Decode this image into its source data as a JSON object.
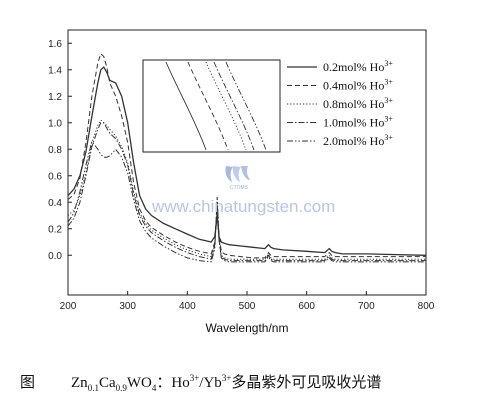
{
  "chart_data": {
    "type": "line",
    "xlabel": "Wavelength/nm",
    "ylabel": "",
    "xlim": [
      200,
      800
    ],
    "ylim": [
      -0.3,
      1.7
    ],
    "x_ticks": [
      200,
      300,
      400,
      500,
      600,
      700,
      800
    ],
    "y_ticks": [
      0.0,
      0.2,
      0.4,
      0.6,
      0.8,
      1.0,
      1.2,
      1.4,
      1.6
    ],
    "legend_placement": "top-right",
    "grid": false,
    "inset": true,
    "series": [
      {
        "name": "0.2mol% Ho",
        "name_sup": "3+",
        "style": "solid",
        "x": [
          200,
          210,
          220,
          230,
          240,
          250,
          255,
          260,
          265,
          270,
          280,
          290,
          300,
          310,
          320,
          330,
          340,
          350,
          360,
          380,
          400,
          420,
          440,
          446,
          450,
          453,
          457,
          462,
          470,
          490,
          510,
          530,
          536,
          540,
          545,
          560,
          600,
          630,
          638,
          642,
          648,
          660,
          700,
          800
        ],
        "values": [
          0.45,
          0.5,
          0.6,
          0.78,
          1.05,
          1.3,
          1.4,
          1.42,
          1.38,
          1.32,
          1.3,
          1.2,
          1.0,
          0.7,
          0.45,
          0.35,
          0.3,
          0.27,
          0.24,
          0.2,
          0.16,
          0.12,
          0.1,
          0.14,
          0.3,
          0.14,
          0.1,
          0.09,
          0.08,
          0.07,
          0.06,
          0.05,
          0.08,
          0.06,
          0.05,
          0.04,
          0.03,
          0.02,
          0.05,
          0.03,
          0.02,
          0.01,
          0.01,
          0.0
        ]
      },
      {
        "name": "0.4mol% Ho",
        "name_sup": "3+",
        "style": "dashed",
        "x": [
          200,
          210,
          220,
          230,
          240,
          250,
          255,
          260,
          265,
          270,
          280,
          290,
          300,
          310,
          320,
          330,
          340,
          350,
          360,
          380,
          400,
          420,
          440,
          446,
          450,
          453,
          457,
          462,
          470,
          490,
          510,
          530,
          536,
          540,
          545,
          560,
          600,
          630,
          638,
          642,
          648,
          660,
          700,
          800
        ],
        "values": [
          0.42,
          0.46,
          0.58,
          0.85,
          1.2,
          1.45,
          1.52,
          1.5,
          1.42,
          1.3,
          1.2,
          1.05,
          0.85,
          0.55,
          0.35,
          0.26,
          0.21,
          0.18,
          0.15,
          0.1,
          0.06,
          0.03,
          0.01,
          0.1,
          0.4,
          0.15,
          0.03,
          0.01,
          0.0,
          -0.01,
          -0.02,
          -0.02,
          0.02,
          0.0,
          -0.01,
          -0.01,
          -0.01,
          -0.01,
          0.02,
          0.0,
          -0.01,
          -0.01,
          -0.01,
          -0.01
        ]
      },
      {
        "name": "0.8mol% Ho",
        "name_sup": "3+",
        "style": "dotted",
        "x": [
          200,
          210,
          220,
          230,
          240,
          250,
          255,
          260,
          265,
          270,
          280,
          290,
          300,
          310,
          320,
          330,
          340,
          350,
          360,
          380,
          400,
          420,
          440,
          446,
          450,
          453,
          457,
          462,
          470,
          490,
          510,
          530,
          536,
          540,
          545,
          560,
          600,
          630,
          638,
          642,
          648,
          660,
          700,
          800
        ],
        "values": [
          0.3,
          0.34,
          0.45,
          0.62,
          0.85,
          0.98,
          1.02,
          1.0,
          0.98,
          0.95,
          0.9,
          0.82,
          0.7,
          0.48,
          0.32,
          0.24,
          0.19,
          0.16,
          0.13,
          0.08,
          0.04,
          0.01,
          -0.01,
          0.08,
          0.36,
          0.12,
          0.0,
          -0.02,
          -0.03,
          -0.03,
          -0.03,
          -0.03,
          0.01,
          -0.02,
          -0.03,
          -0.03,
          -0.03,
          -0.03,
          0.0,
          -0.02,
          -0.03,
          -0.03,
          -0.03,
          -0.03
        ]
      },
      {
        "name": "1.0mol% Ho",
        "name_sup": "3+",
        "style": "dashdot",
        "x": [
          200,
          210,
          220,
          230,
          240,
          250,
          255,
          260,
          265,
          270,
          280,
          290,
          300,
          310,
          320,
          330,
          340,
          350,
          360,
          380,
          400,
          420,
          440,
          446,
          450,
          453,
          457,
          462,
          470,
          490,
          510,
          530,
          536,
          540,
          545,
          560,
          600,
          630,
          638,
          642,
          648,
          660,
          700,
          800
        ],
        "values": [
          0.22,
          0.28,
          0.4,
          0.6,
          0.82,
          0.95,
          1.0,
          1.0,
          0.96,
          0.92,
          0.88,
          0.8,
          0.68,
          0.46,
          0.3,
          0.22,
          0.17,
          0.14,
          0.11,
          0.06,
          0.02,
          -0.01,
          -0.03,
          0.08,
          0.4,
          0.12,
          -0.01,
          -0.03,
          -0.04,
          -0.04,
          -0.04,
          -0.04,
          0.0,
          -0.03,
          -0.04,
          -0.04,
          -0.04,
          -0.04,
          -0.01,
          -0.03,
          -0.04,
          -0.04,
          -0.04,
          -0.04
        ]
      },
      {
        "name": "2.0mol% Ho",
        "name_sup": "3+",
        "style": "dashdotdot",
        "x": [
          200,
          210,
          220,
          230,
          240,
          250,
          255,
          260,
          265,
          270,
          280,
          290,
          300,
          310,
          320,
          330,
          340,
          350,
          360,
          380,
          400,
          420,
          440,
          446,
          450,
          453,
          457,
          462,
          470,
          490,
          510,
          530,
          536,
          540,
          545,
          560,
          600,
          630,
          638,
          642,
          648,
          660,
          700,
          800
        ],
        "values": [
          0.25,
          0.32,
          0.48,
          0.68,
          0.86,
          0.8,
          0.76,
          0.74,
          0.74,
          0.75,
          0.8,
          0.74,
          0.62,
          0.42,
          0.26,
          0.18,
          0.13,
          0.1,
          0.07,
          0.02,
          -0.02,
          -0.04,
          -0.05,
          0.05,
          0.44,
          0.12,
          -0.02,
          -0.04,
          -0.05,
          -0.05,
          -0.05,
          -0.05,
          -0.01,
          -0.04,
          -0.05,
          -0.05,
          -0.05,
          -0.05,
          -0.02,
          -0.04,
          -0.05,
          -0.05,
          -0.05,
          -0.05
        ]
      }
    ]
  },
  "watermark": {
    "url": "www.chinatungsten.com",
    "logo_text": "CTOMS"
  },
  "caption": {
    "fig_label": "图",
    "formula_zn": "Zn",
    "formula_zn_sub": "0.1",
    "formula_ca": "Ca",
    "formula_ca_sub": "0.9",
    "formula_wo": "WO",
    "formula_wo_sub": "4",
    "separator": "：",
    "ho": "Ho",
    "ho_sup": "3+",
    "slash": "/",
    "yb": "Yb",
    "yb_sup": "3+",
    "title_text": "多晶紫外可见吸收光谱"
  },
  "colors": {
    "line": "#333333",
    "watermark": "#b7c6e6",
    "logo": "#8aa0d6"
  }
}
